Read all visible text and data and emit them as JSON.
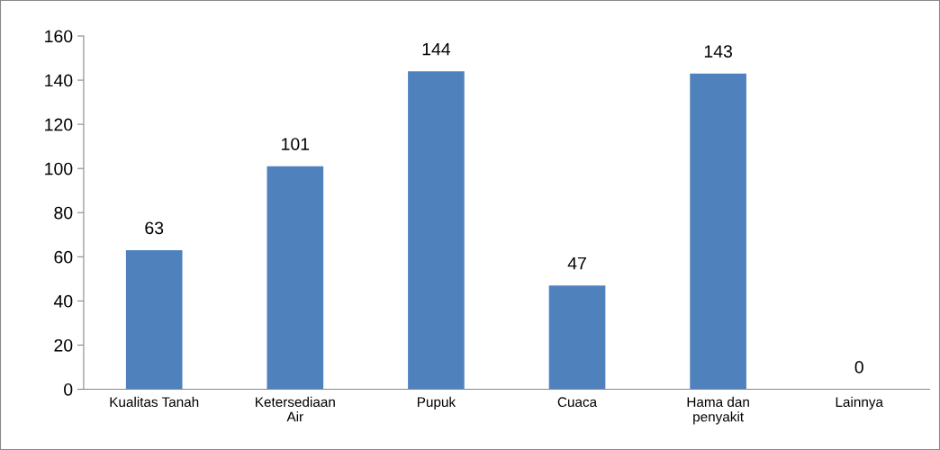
{
  "chart_data": {
    "type": "bar",
    "categories": [
      "Kualitas Tanah",
      "Ketersediaan\nAir",
      "Pupuk",
      "Cuaca",
      "Hama dan\npenyakit",
      "Lainnya"
    ],
    "values": [
      63,
      101,
      144,
      47,
      143,
      0
    ],
    "color": "#4f81bd",
    "ylim": [
      0,
      160
    ],
    "yticks": [
      0,
      20,
      40,
      60,
      80,
      100,
      120,
      140,
      160
    ],
    "grid": false,
    "legend": false,
    "data_labels": true
  }
}
